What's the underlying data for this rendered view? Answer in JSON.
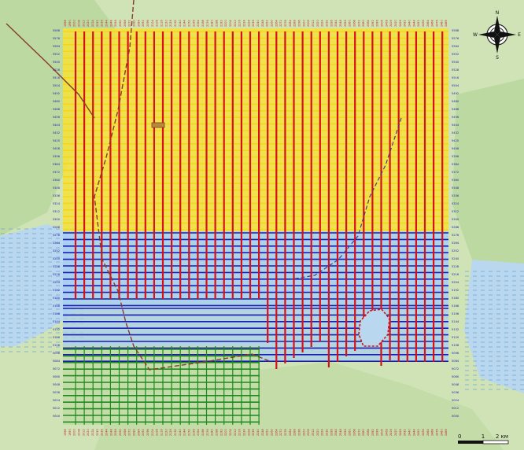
{
  "grid": {
    "top_row_labels": [
      "1988",
      "1990",
      "2000",
      "2008",
      "2012",
      "2020",
      "2024",
      "2032",
      "2036",
      "2044",
      "2048",
      "2056",
      "2060",
      "2068",
      "2072",
      "2080",
      "2084",
      "2092",
      "2096",
      "2104",
      "2108",
      "2116",
      "2120",
      "2128",
      "2132",
      "2140",
      "2144",
      "2152",
      "2156",
      "2164",
      "2168",
      "2176",
      "2180",
      "2188",
      "2192",
      "2200",
      "2204",
      "2212",
      "2216",
      "2224",
      "2228",
      "2236",
      "2240",
      "2248",
      "2252",
      "2260",
      "2264",
      "2272",
      "2276",
      "2284",
      "2288",
      "2296",
      "2300",
      "2308",
      "2312",
      "2320",
      "2324",
      "2332",
      "2336",
      "2344",
      "2348",
      "2356",
      "2360",
      "2368",
      "2372",
      "2380",
      "2384",
      "2392",
      "2396",
      "2404",
      "2408",
      "2416",
      "2420",
      "2428",
      "2432",
      "2440",
      "2444",
      "2452",
      "2456",
      "2464",
      "2468",
      "2476",
      "2480",
      "2488"
    ],
    "bottom_row_labels": [
      "1988",
      "1990",
      "2000",
      "2008",
      "2012",
      "2020",
      "2024",
      "2032",
      "2036",
      "2044",
      "2048",
      "2056",
      "2060",
      "2068",
      "2072",
      "2080",
      "2084",
      "2092",
      "2096",
      "2104",
      "2108",
      "2116",
      "2120",
      "2128",
      "2132",
      "2140",
      "2144",
      "2152",
      "2156",
      "2164",
      "2168",
      "2176",
      "2180",
      "2188",
      "2192",
      "2200",
      "2204",
      "2212",
      "2216",
      "2224",
      "2228",
      "2236",
      "2240",
      "2248",
      "2252",
      "2260",
      "2264",
      "2272",
      "2276",
      "2284",
      "2288",
      "2296",
      "2300",
      "2308",
      "2312",
      "2320",
      "2324",
      "2332",
      "2336",
      "2344",
      "2348",
      "2356",
      "2360",
      "2368",
      "2372",
      "2380",
      "2384",
      "2392",
      "2396",
      "2404",
      "2408",
      "2416",
      "2420",
      "2428",
      "2432",
      "2440",
      "2444",
      "2452",
      "2456",
      "2464",
      "2468",
      "2476",
      "2480",
      "2488"
    ],
    "left_col_labels": [
      "5588",
      "5576",
      "5564",
      "5552",
      "5540",
      "5528",
      "5516",
      "5504",
      "5492",
      "5480",
      "5468",
      "5456",
      "5444",
      "5432",
      "5420",
      "5408",
      "5396",
      "5384",
      "5372",
      "5360",
      "5348",
      "5336",
      "5324",
      "5312",
      "5300",
      "5288",
      "5276",
      "5264",
      "5252",
      "5240",
      "5228",
      "5216",
      "5204",
      "5192",
      "5180",
      "5168",
      "5156",
      "5144",
      "5132",
      "5120",
      "5108",
      "5096",
      "5084",
      "5072",
      "5060",
      "5048",
      "5036",
      "5024",
      "5012",
      "5000"
    ],
    "right_col_labels": [
      "5588",
      "5576",
      "5564",
      "5552",
      "5540",
      "5528",
      "5516",
      "5504",
      "5492",
      "5480",
      "5468",
      "5456",
      "5444",
      "5432",
      "5420",
      "5408",
      "5396",
      "5384",
      "5372",
      "5360",
      "5348",
      "5336",
      "5324",
      "5312",
      "5300",
      "5288",
      "5276",
      "5264",
      "5252",
      "5240",
      "5228",
      "5216",
      "5204",
      "5192",
      "5180",
      "5168",
      "5156",
      "5144",
      "5132",
      "5120",
      "5108",
      "5096",
      "5084",
      "5072",
      "5060",
      "5048",
      "5036",
      "5024",
      "5012",
      "5000"
    ]
  },
  "compass": {
    "n": "N",
    "s": "S",
    "e": "E",
    "w": "W"
  },
  "scale_bar": {
    "tick_0": "0",
    "tick_1": "1",
    "tick_2": "2 км"
  },
  "colors": {
    "zone_yellow": "#f4e23a",
    "zone_blue": "#2828b4",
    "zone_lightblue": "#a9d0ee",
    "zone_green": "#2e8b2e",
    "receiver_line_red": "#d8101a",
    "source_line_yellow": "#f5d51f",
    "source_line_blue": "#1b1bb8",
    "source_line_green": "#1d8a1d",
    "label_red": "#c81818",
    "label_blue": "#1a1aa8",
    "forest": "#bcd9a2",
    "water": "#b9d7ee",
    "road": "#8a3a2a"
  },
  "icons": [
    "compass-rose-icon",
    "scale-bar-icon"
  ]
}
